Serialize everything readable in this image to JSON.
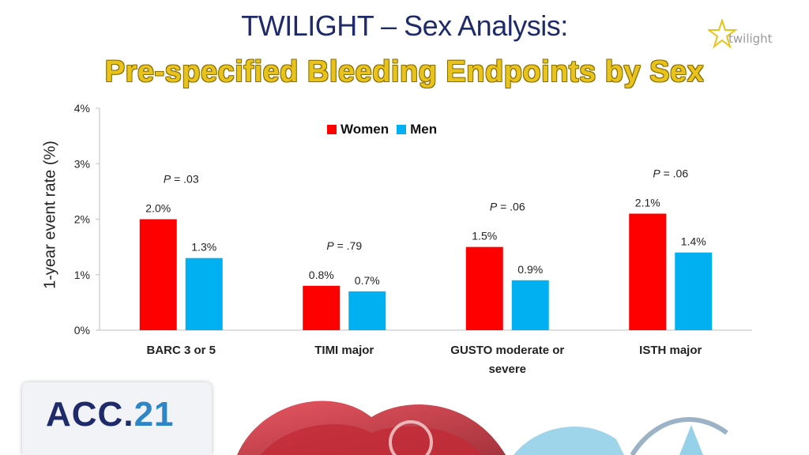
{
  "header": {
    "title": "TWILIGHT – Sex Analysis:",
    "subtitle": "Pre-specified Bleeding Endpoints by Sex",
    "brand_logo_text": "twilight"
  },
  "footer": {
    "logo_prefix": "ACC.",
    "logo_number": "21"
  },
  "colors": {
    "women": "#ff0000",
    "men": "#00b0f0",
    "title": "#1f2a6b",
    "subtitle": "#e8c31c"
  },
  "chart_data": {
    "type": "bar",
    "title": "",
    "xlabel": "",
    "ylabel": "1-year event rate (%)",
    "ylim": [
      0,
      4
    ],
    "yticks": [
      {
        "value": 0,
        "label": "0%"
      },
      {
        "value": 1,
        "label": "1%"
      },
      {
        "value": 2,
        "label": "2%"
      },
      {
        "value": 3,
        "label": "3%"
      },
      {
        "value": 4,
        "label": "4%"
      }
    ],
    "categories": [
      "BARC 3 or 5",
      "TIMI major",
      "GUSTO moderate or severe",
      "ISTH major"
    ],
    "category_lines": [
      [
        "BARC 3 or 5"
      ],
      [
        "TIMI major"
      ],
      [
        "GUSTO moderate or",
        "severe"
      ],
      [
        "ISTH major"
      ]
    ],
    "series": [
      {
        "name": "Women",
        "values": [
          2.0,
          0.8,
          1.5,
          2.1
        ],
        "labels": [
          "2.0%",
          "0.8%",
          "1.5%",
          "2.1%"
        ]
      },
      {
        "name": "Men",
        "values": [
          1.3,
          0.7,
          0.9,
          1.4
        ],
        "labels": [
          "1.3%",
          "0.7%",
          "0.9%",
          "1.4%"
        ]
      }
    ],
    "p_values": [
      ".03",
      ".79",
      ".06",
      ".06"
    ],
    "p_prefix": "P",
    "p_separator": " = ",
    "legend_position": "top-center",
    "grid": false
  }
}
